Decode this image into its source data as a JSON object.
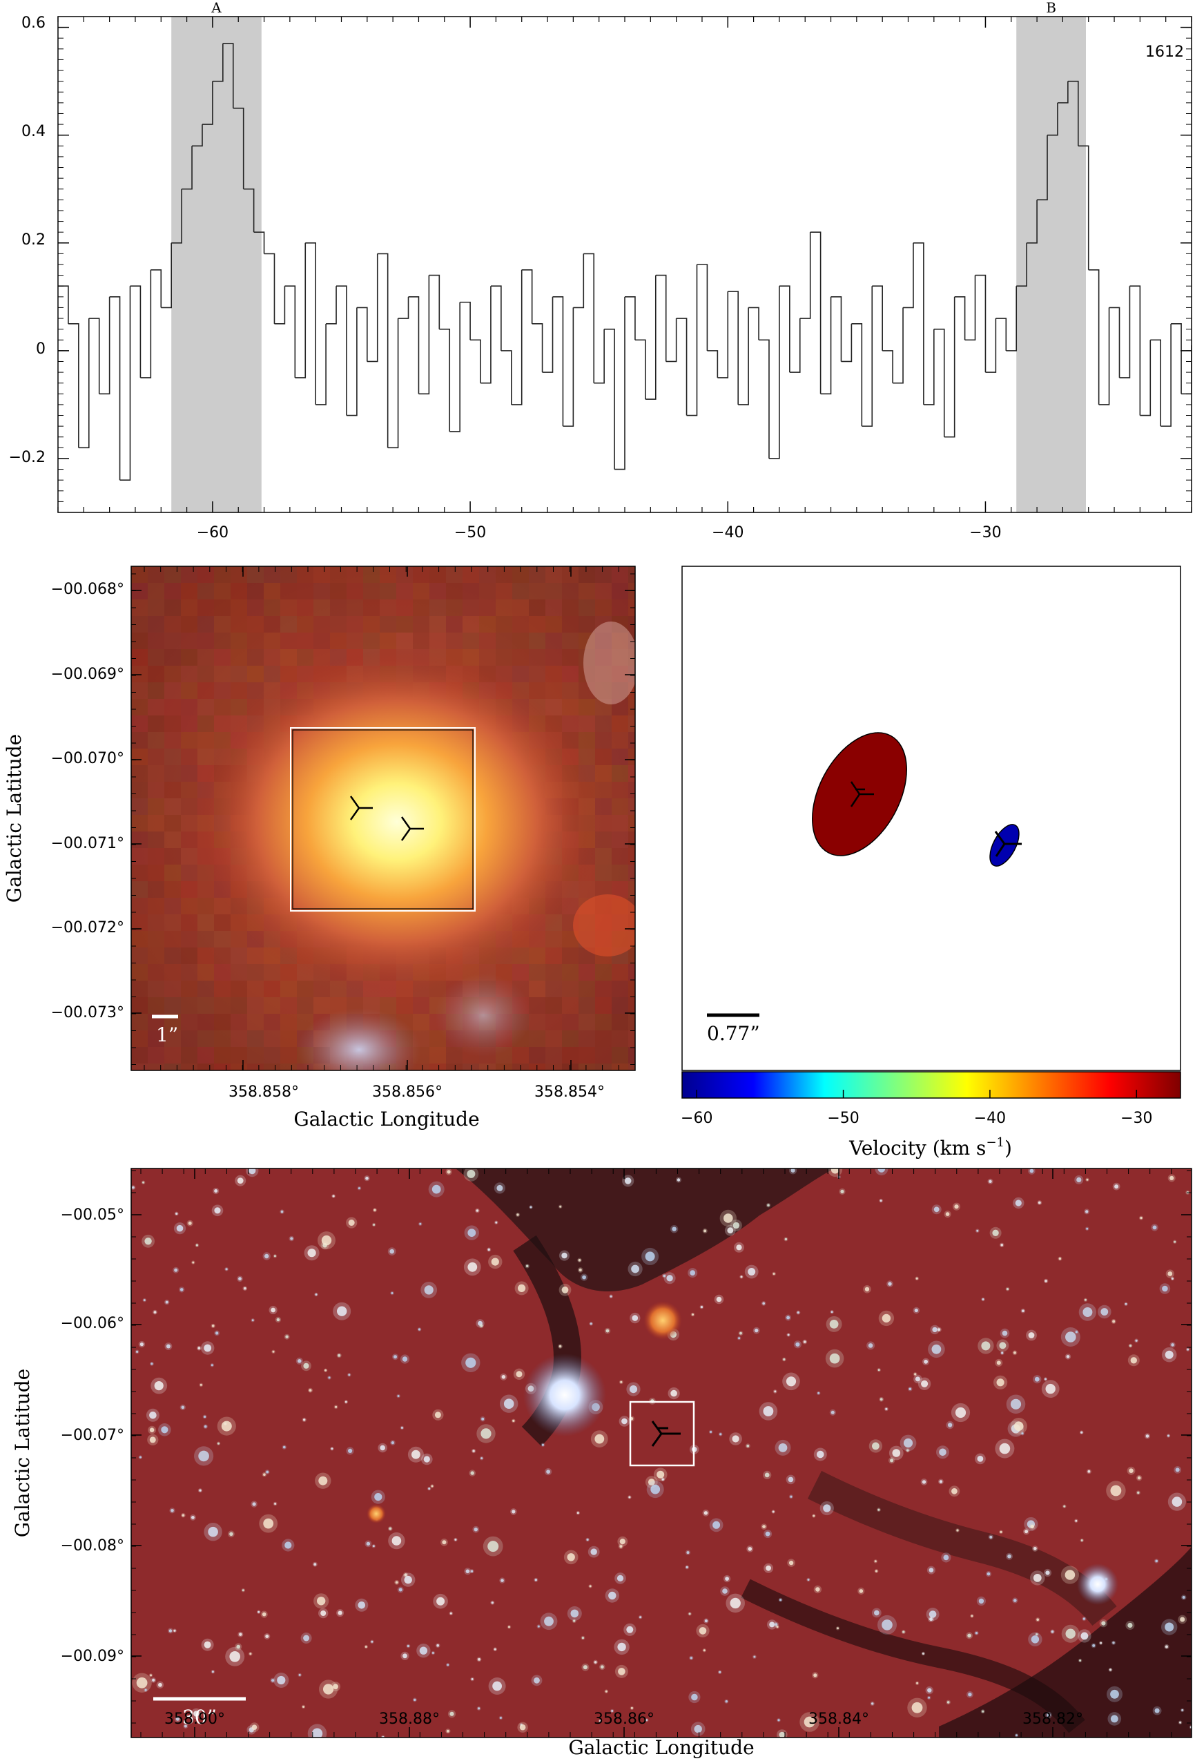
{
  "spectrum": {
    "channel_label": "1612",
    "region_labels": [
      "A",
      "B"
    ],
    "x_ticks": [
      "−60",
      "−50",
      "−40",
      "−30"
    ],
    "y_ticks": [
      "0.6",
      "0.4",
      "0.2",
      "0",
      "−0.2"
    ]
  },
  "chart_data": {
    "type": "line",
    "xlim": [
      -66,
      -22
    ],
    "ylim": [
      -0.3,
      0.62
    ],
    "shaded_regions": [
      {
        "label": "A",
        "x": [
          -61.6,
          -58.1
        ]
      },
      {
        "label": "B",
        "x": [
          -28.8,
          -26.1
        ]
      }
    ],
    "x_ticks": [
      -60,
      -50,
      -40,
      -30
    ],
    "y_ticks": [
      0.6,
      0.4,
      0.2,
      0,
      -0.2
    ],
    "series": [
      {
        "values": [
          [
            -66.0,
            0.12
          ],
          [
            -65.6,
            0.05
          ],
          [
            -65.2,
            -0.18
          ],
          [
            -64.8,
            0.06
          ],
          [
            -64.4,
            -0.08
          ],
          [
            -64.0,
            0.1
          ],
          [
            -63.6,
            -0.24
          ],
          [
            -63.2,
            0.12
          ],
          [
            -62.8,
            -0.05
          ],
          [
            -62.4,
            0.15
          ],
          [
            -62.0,
            0.08
          ],
          [
            -61.6,
            0.2
          ],
          [
            -61.2,
            0.3
          ],
          [
            -60.8,
            0.38
          ],
          [
            -60.4,
            0.42
          ],
          [
            -60.0,
            0.5
          ],
          [
            -59.6,
            0.57
          ],
          [
            -59.2,
            0.45
          ],
          [
            -58.8,
            0.3
          ],
          [
            -58.4,
            0.22
          ],
          [
            -58.0,
            0.18
          ],
          [
            -57.6,
            0.05
          ],
          [
            -57.2,
            0.12
          ],
          [
            -56.8,
            -0.05
          ],
          [
            -56.4,
            0.2
          ],
          [
            -56.0,
            -0.1
          ],
          [
            -55.6,
            0.05
          ],
          [
            -55.2,
            0.12
          ],
          [
            -54.8,
            -0.12
          ],
          [
            -54.4,
            0.08
          ],
          [
            -54.0,
            -0.02
          ],
          [
            -53.6,
            0.18
          ],
          [
            -53.2,
            -0.18
          ],
          [
            -52.8,
            0.06
          ],
          [
            -52.4,
            0.1
          ],
          [
            -52.0,
            -0.08
          ],
          [
            -51.6,
            0.14
          ],
          [
            -51.2,
            0.04
          ],
          [
            -50.8,
            -0.15
          ],
          [
            -50.4,
            0.09
          ],
          [
            -50.0,
            0.02
          ],
          [
            -49.6,
            -0.06
          ],
          [
            -49.2,
            0.12
          ],
          [
            -48.8,
            0.0
          ],
          [
            -48.4,
            -0.1
          ],
          [
            -48.0,
            0.15
          ],
          [
            -47.6,
            0.05
          ],
          [
            -47.2,
            -0.04
          ],
          [
            -46.8,
            0.1
          ],
          [
            -46.4,
            -0.14
          ],
          [
            -46.0,
            0.08
          ],
          [
            -45.6,
            0.18
          ],
          [
            -45.2,
            -0.06
          ],
          [
            -44.8,
            0.04
          ],
          [
            -44.4,
            -0.22
          ],
          [
            -44.0,
            0.1
          ],
          [
            -43.6,
            0.02
          ],
          [
            -43.2,
            -0.09
          ],
          [
            -42.8,
            0.14
          ],
          [
            -42.4,
            -0.02
          ],
          [
            -42.0,
            0.06
          ],
          [
            -41.6,
            -0.12
          ],
          [
            -41.2,
            0.16
          ],
          [
            -40.8,
            0.0
          ],
          [
            -40.4,
            -0.05
          ],
          [
            -40.0,
            0.11
          ],
          [
            -39.6,
            -0.1
          ],
          [
            -39.2,
            0.08
          ],
          [
            -38.8,
            0.02
          ],
          [
            -38.4,
            -0.2
          ],
          [
            -38.0,
            0.12
          ],
          [
            -37.6,
            -0.04
          ],
          [
            -37.2,
            0.06
          ],
          [
            -36.8,
            0.22
          ],
          [
            -36.4,
            -0.08
          ],
          [
            -36.0,
            0.1
          ],
          [
            -35.6,
            -0.02
          ],
          [
            -35.2,
            0.05
          ],
          [
            -34.8,
            -0.14
          ],
          [
            -34.4,
            0.12
          ],
          [
            -34.0,
            0.0
          ],
          [
            -33.6,
            -0.06
          ],
          [
            -33.2,
            0.08
          ],
          [
            -32.8,
            0.2
          ],
          [
            -32.4,
            -0.1
          ],
          [
            -32.0,
            0.04
          ],
          [
            -31.6,
            -0.16
          ],
          [
            -31.2,
            0.1
          ],
          [
            -30.8,
            0.02
          ],
          [
            -30.4,
            0.14
          ],
          [
            -30.0,
            -0.04
          ],
          [
            -29.6,
            0.06
          ],
          [
            -29.2,
            0.0
          ],
          [
            -28.8,
            0.12
          ],
          [
            -28.4,
            0.2
          ],
          [
            -28.0,
            0.28
          ],
          [
            -27.6,
            0.4
          ],
          [
            -27.2,
            0.46
          ],
          [
            -26.8,
            0.5
          ],
          [
            -26.4,
            0.38
          ],
          [
            -26.0,
            0.15
          ],
          [
            -25.6,
            -0.1
          ],
          [
            -25.2,
            0.08
          ],
          [
            -24.8,
            -0.05
          ],
          [
            -24.4,
            0.12
          ],
          [
            -24.0,
            -0.12
          ],
          [
            -23.6,
            0.02
          ],
          [
            -23.2,
            -0.14
          ],
          [
            -22.8,
            0.05
          ],
          [
            -22.4,
            -0.08
          ],
          [
            -22.0,
            0.01
          ]
        ]
      }
    ]
  },
  "zoom_panel": {
    "y_ticks": [
      "−00.068°",
      "−00.069°",
      "−00.070°",
      "−00.071°",
      "−00.072°",
      "−00.073°"
    ],
    "x_ticks": [
      "358.858°",
      "358.856°",
      "358.854°"
    ],
    "x_title": "Galactic Longitude",
    "y_title": "Galactic Latitude",
    "scale_label": "1”"
  },
  "maser_panel": {
    "scale_label": "0.77”",
    "colorbar_ticks": [
      "−60",
      "−50",
      "−40",
      "−30"
    ],
    "colorbar_title_main": "Velocity (km s",
    "colorbar_title_sup": "−1",
    "colorbar_title_end": ")",
    "colorbar_range": [
      -61,
      -27
    ],
    "colorbar_colors": [
      "#00008f",
      "#0000ff",
      "#00ffff",
      "#7fff7f",
      "#ffff00",
      "#ff7f00",
      "#ff0000",
      "#7f0000"
    ],
    "spot_velocities": [
      -27.4,
      -59.6
    ]
  },
  "wide_panel": {
    "y_ticks": [
      "−00.05°",
      "−00.06°",
      "−00.07°",
      "−00.08°",
      "−00.09°"
    ],
    "x_ticks": [
      "358.90°",
      "358.88°",
      "358.86°",
      "358.84°",
      "358.82°"
    ],
    "x_title": "Galactic Longitude",
    "y_title": "Galactic Latitude",
    "scale_label": "30”"
  }
}
